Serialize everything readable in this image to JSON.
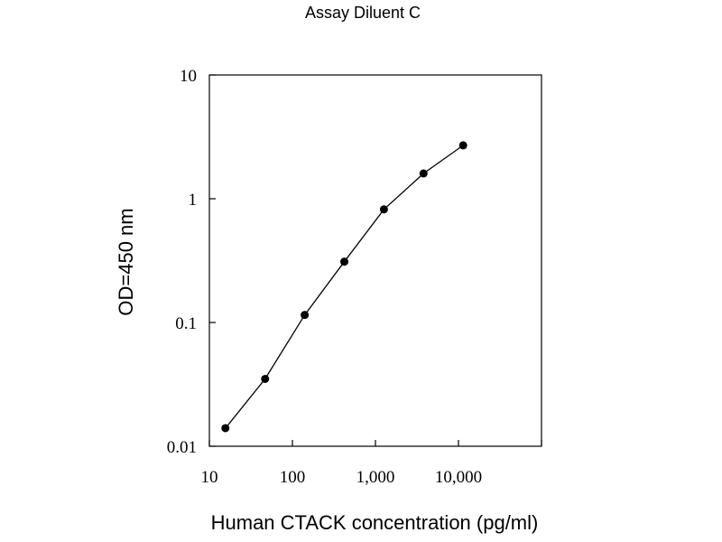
{
  "chart_data": {
    "type": "line",
    "title": "Assay Diluent C",
    "xlabel": "Human CTACK concentration (pg/ml)",
    "ylabel": "OD=450 nm",
    "x_scale": "log",
    "y_scale": "log",
    "xlim": [
      10,
      100000
    ],
    "ylim": [
      0.01,
      10
    ],
    "x_ticks": [
      10,
      100,
      1000,
      10000
    ],
    "x_tick_labels": [
      "10",
      "100",
      "1,000",
      "10,000"
    ],
    "y_ticks": [
      0.01,
      0.1,
      1,
      10
    ],
    "y_tick_labels": [
      "0.01",
      "0.1",
      "1",
      "10"
    ],
    "grid": false,
    "series": [
      {
        "x": [
          15.6,
          46.9,
          140.6,
          421.9,
          1265.6,
          3796.9,
          11390.6
        ],
        "y": [
          0.014,
          0.035,
          0.115,
          0.31,
          0.82,
          1.6,
          2.7
        ]
      }
    ]
  }
}
